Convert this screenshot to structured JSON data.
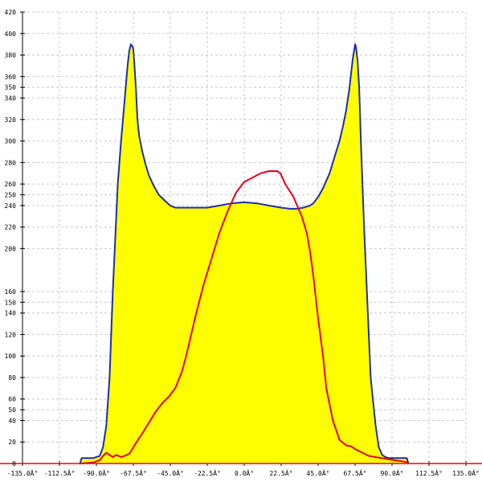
{
  "chart_data": {
    "type": "area",
    "title": "",
    "xlabel": "",
    "ylabel": "",
    "xlim": [
      -135,
      135
    ],
    "ylim": [
      0,
      420
    ],
    "grid": true,
    "x_ticks": [
      {
        "value": -135,
        "label": "-135.0Â°"
      },
      {
        "value": -112.5,
        "label": "-112.5Â°"
      },
      {
        "value": -90,
        "label": "-90.0Â°"
      },
      {
        "value": -67.5,
        "label": "-67.5Â°"
      },
      {
        "value": -45,
        "label": "-45.0Â°"
      },
      {
        "value": -22.5,
        "label": "-22.5Â°"
      },
      {
        "value": 0,
        "label": "0.0Â°"
      },
      {
        "value": 22.5,
        "label": "22.5Â°"
      },
      {
        "value": 45,
        "label": "45.0Â°"
      },
      {
        "value": 67.5,
        "label": "67.5Â°"
      },
      {
        "value": 90,
        "label": "90.0Â°"
      },
      {
        "value": 112.5,
        "label": "112.5Â°"
      },
      {
        "value": 135,
        "label": "135.0Â°"
      }
    ],
    "y_ticks": [
      {
        "value": 0,
        "label": "0"
      },
      {
        "value": 20,
        "label": "20"
      },
      {
        "value": 40,
        "label": "40"
      },
      {
        "value": 50,
        "label": "50"
      },
      {
        "value": 60,
        "label": "60"
      },
      {
        "value": 80,
        "label": "80"
      },
      {
        "value": 100,
        "label": "100"
      },
      {
        "value": 120,
        "label": "120"
      },
      {
        "value": 140,
        "label": "140"
      },
      {
        "value": 150,
        "label": "150"
      },
      {
        "value": 160,
        "label": "160"
      },
      {
        "value": 200,
        "label": "200"
      },
      {
        "value": 220,
        "label": "220"
      },
      {
        "value": 240,
        "label": "240"
      },
      {
        "value": 250,
        "label": "250"
      },
      {
        "value": 260,
        "label": "260"
      },
      {
        "value": 280,
        "label": "280"
      },
      {
        "value": 300,
        "label": "300"
      },
      {
        "value": 320,
        "label": "320"
      },
      {
        "value": 340,
        "label": "340"
      },
      {
        "value": 350,
        "label": "350"
      },
      {
        "value": 360,
        "label": "360"
      },
      {
        "value": 380,
        "label": "380"
      },
      {
        "value": 400,
        "label": "400"
      },
      {
        "value": 420,
        "label": "420"
      }
    ],
    "series": [
      {
        "color": "#1c2fa8",
        "fill": "#ffff00",
        "x": [
          -100,
          -99,
          -92,
          -88,
          -86,
          -84,
          -82,
          -80,
          -77,
          -75,
          -73,
          -71,
          -70,
          -69,
          -68,
          -67.5,
          -67,
          -66,
          -65,
          -64,
          -62,
          -60,
          -58,
          -55,
          -52,
          -48,
          -45,
          -42,
          -40,
          -36,
          -32,
          -28,
          -22.5,
          -15,
          -8,
          0,
          8,
          15,
          22.5,
          28,
          32,
          36,
          40,
          42,
          45,
          48,
          52,
          55,
          58,
          60,
          62,
          64,
          65,
          66,
          67,
          67.5,
          68,
          69,
          70,
          71,
          73,
          75,
          77,
          80,
          82,
          84,
          86,
          88,
          92,
          99,
          100
        ],
        "y": [
          0,
          5,
          5,
          7,
          15,
          35,
          80,
          160,
          260,
          300,
          335,
          370,
          384,
          390,
          388,
          385,
          375,
          350,
          320,
          305,
          290,
          278,
          268,
          258,
          250,
          244,
          240,
          238,
          238,
          238,
          238,
          238,
          238,
          240,
          242,
          243,
          242,
          240,
          238,
          237,
          237,
          238,
          240,
          242,
          248,
          256,
          270,
          285,
          300,
          313,
          328,
          348,
          362,
          375,
          385,
          390,
          388,
          375,
          350,
          300,
          220,
          150,
          80,
          35,
          15,
          8,
          6,
          5,
          5,
          5,
          0
        ]
      },
      {
        "color": "#e8001c",
        "x": [
          -100,
          -92,
          -88,
          -86,
          -84,
          -80,
          -78,
          -75,
          -73,
          -70,
          -67.5,
          -66,
          -62,
          -58,
          -54,
          -50,
          -46,
          -42,
          -38,
          -35,
          -30,
          -25,
          -20,
          -15,
          -10,
          -5,
          0,
          5,
          10,
          15,
          20,
          22,
          25,
          30,
          35,
          38,
          40,
          42,
          45,
          48,
          50,
          54,
          58,
          62,
          65,
          68,
          72,
          76,
          80,
          84,
          88,
          92,
          96,
          100
        ],
        "y": [
          0,
          1,
          3,
          7,
          10,
          6,
          8,
          6,
          7,
          9,
          15,
          19,
          28,
          38,
          48,
          56,
          62,
          70,
          85,
          102,
          135,
          165,
          190,
          215,
          235,
          252,
          262,
          266,
          270,
          272,
          272,
          270,
          260,
          248,
          230,
          215,
          198,
          175,
          135,
          100,
          70,
          40,
          22,
          17,
          16,
          13,
          10,
          7,
          6,
          5,
          4,
          3,
          2,
          1
        ]
      }
    ]
  }
}
